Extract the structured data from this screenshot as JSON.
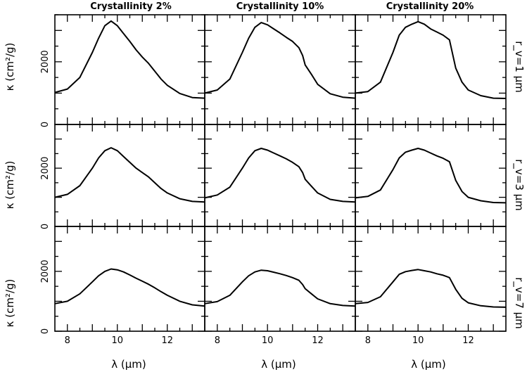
{
  "chart_data": {
    "type": "line",
    "grid": false,
    "legend": false,
    "layout": "3x3 panel grid",
    "xlabel": "λ (μm)",
    "ylabel": "κ (cm²/g)",
    "xlim": [
      7.5,
      13.5
    ],
    "ylim": [
      0,
      3500
    ],
    "xticks": [
      8,
      10,
      12
    ],
    "yticks": [
      0,
      2000
    ],
    "column_titles": [
      "Crystallinity 2%",
      "Crystallinity 10%",
      "Crystallinity 20%"
    ],
    "row_labels": [
      "r_v=1 μm",
      "r_v=3 μm",
      "r_v=7 μm"
    ],
    "panels": [
      {
        "row": 0,
        "col": 0,
        "x": [
          7.5,
          8,
          8.5,
          9,
          9.25,
          9.5,
          9.75,
          10,
          10.25,
          10.5,
          10.75,
          11,
          11.25,
          11.5,
          11.75,
          12,
          12.5,
          13,
          13.5
        ],
        "y": [
          1020,
          1130,
          1500,
          2300,
          2750,
          3150,
          3300,
          3150,
          2900,
          2650,
          2380,
          2150,
          1950,
          1700,
          1450,
          1250,
          990,
          860,
          840
        ]
      },
      {
        "row": 0,
        "col": 1,
        "x": [
          7.5,
          8,
          8.5,
          9,
          9.25,
          9.5,
          9.75,
          10,
          10.25,
          10.5,
          10.75,
          11,
          11.25,
          11.4,
          11.5,
          11.75,
          12,
          12.5,
          13,
          13.5
        ],
        "y": [
          1000,
          1100,
          1450,
          2300,
          2750,
          3100,
          3250,
          3180,
          3050,
          2920,
          2780,
          2650,
          2450,
          2200,
          1900,
          1600,
          1280,
          980,
          870,
          840
        ]
      },
      {
        "row": 0,
        "col": 2,
        "x": [
          7.5,
          8,
          8.5,
          9,
          9.25,
          9.5,
          9.75,
          10,
          10.25,
          10.5,
          10.75,
          11,
          11.25,
          11.5,
          11.75,
          12,
          12.5,
          13,
          13.5
        ],
        "y": [
          1000,
          1050,
          1350,
          2300,
          2850,
          3100,
          3200,
          3280,
          3200,
          3050,
          2950,
          2850,
          2700,
          1800,
          1350,
          1100,
          920,
          840,
          830
        ]
      },
      {
        "row": 1,
        "col": 0,
        "x": [
          7.5,
          8,
          8.5,
          9,
          9.25,
          9.5,
          9.75,
          10,
          10.25,
          10.5,
          10.75,
          11,
          11.25,
          11.5,
          11.75,
          12,
          12.5,
          13,
          13.5
        ],
        "y": [
          1000,
          1100,
          1400,
          2000,
          2350,
          2600,
          2700,
          2600,
          2400,
          2200,
          2000,
          1850,
          1700,
          1500,
          1300,
          1150,
          950,
          860,
          840
        ]
      },
      {
        "row": 1,
        "col": 1,
        "x": [
          7.5,
          8,
          8.5,
          9,
          9.25,
          9.5,
          9.75,
          10,
          10.25,
          10.5,
          10.75,
          11,
          11.25,
          11.4,
          11.5,
          11.75,
          12,
          12.5,
          13,
          13.5
        ],
        "y": [
          980,
          1080,
          1350,
          2000,
          2350,
          2600,
          2680,
          2620,
          2520,
          2420,
          2320,
          2200,
          2050,
          1850,
          1620,
          1380,
          1150,
          930,
          860,
          840
        ]
      },
      {
        "row": 1,
        "col": 2,
        "x": [
          7.5,
          8,
          8.5,
          9,
          9.25,
          9.5,
          9.75,
          10,
          10.25,
          10.5,
          10.75,
          11,
          11.25,
          11.5,
          11.75,
          12,
          12.5,
          13,
          13.5
        ],
        "y": [
          980,
          1030,
          1250,
          1950,
          2350,
          2550,
          2620,
          2680,
          2620,
          2520,
          2420,
          2340,
          2220,
          1580,
          1200,
          1000,
          880,
          820,
          810
        ]
      },
      {
        "row": 2,
        "col": 0,
        "x": [
          7.5,
          8,
          8.5,
          9,
          9.25,
          9.5,
          9.75,
          10,
          10.25,
          10.5,
          10.75,
          11,
          11.25,
          11.5,
          11.75,
          12,
          12.5,
          13,
          13.5
        ],
        "y": [
          920,
          1000,
          1250,
          1650,
          1850,
          2000,
          2080,
          2050,
          1980,
          1880,
          1770,
          1670,
          1570,
          1450,
          1320,
          1200,
          1000,
          880,
          840
        ]
      },
      {
        "row": 2,
        "col": 1,
        "x": [
          7.5,
          8,
          8.5,
          9,
          9.25,
          9.5,
          9.75,
          10,
          10.25,
          10.5,
          10.75,
          11,
          11.25,
          11.4,
          11.5,
          11.75,
          12,
          12.5,
          13,
          13.5
        ],
        "y": [
          920,
          990,
          1200,
          1650,
          1850,
          1980,
          2040,
          2020,
          1970,
          1920,
          1860,
          1790,
          1700,
          1560,
          1420,
          1250,
          1080,
          920,
          860,
          840
        ]
      },
      {
        "row": 2,
        "col": 2,
        "x": [
          7.5,
          8,
          8.5,
          9,
          9.25,
          9.5,
          9.75,
          10,
          10.25,
          10.5,
          10.75,
          11,
          11.25,
          11.5,
          11.75,
          12,
          12.5,
          13,
          13.5
        ],
        "y": [
          920,
          960,
          1150,
          1650,
          1900,
          1990,
          2030,
          2060,
          2020,
          1980,
          1920,
          1870,
          1790,
          1400,
          1100,
          950,
          850,
          810,
          800
        ]
      }
    ]
  }
}
